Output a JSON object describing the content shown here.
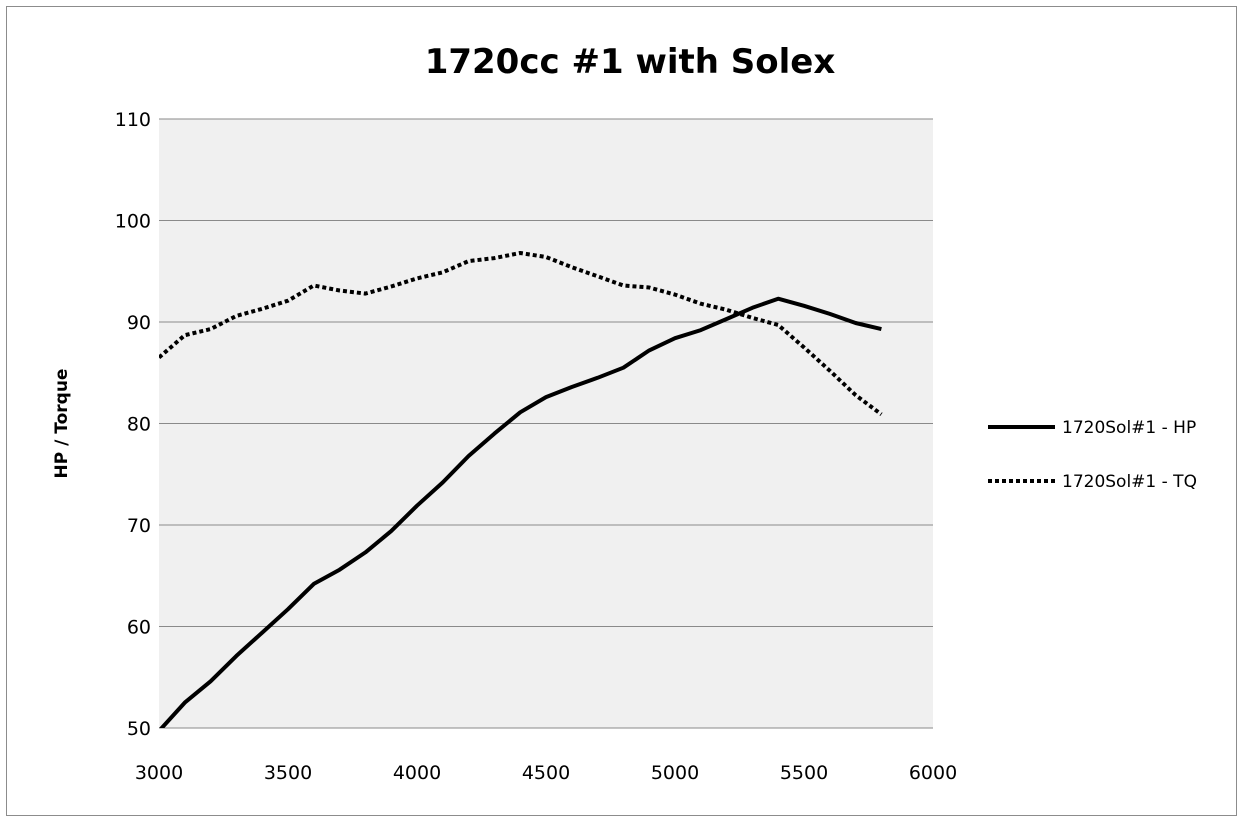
{
  "chart_data": {
    "type": "line",
    "title": "1720cc #1 with Solex",
    "xlabel": "",
    "ylabel": "HP / Torque",
    "xlim": [
      3000,
      6000
    ],
    "ylim": [
      50,
      110
    ],
    "xticks": [
      "3000",
      "3500",
      "4000",
      "4500",
      "5000",
      "5500",
      "6000"
    ],
    "yticks": [
      "50",
      "60",
      "70",
      "80",
      "90",
      "100",
      "110"
    ],
    "grid": "horizontal",
    "legend_position": "right",
    "x": [
      3000,
      3100,
      3200,
      3300,
      3400,
      3500,
      3600,
      3700,
      3800,
      3900,
      4000,
      4100,
      4200,
      4300,
      4400,
      4500,
      4600,
      4700,
      4800,
      4900,
      5000,
      5100,
      5200,
      5300,
      5400,
      5500,
      5600,
      5700,
      5800
    ],
    "series": [
      {
        "name": "1720Sol#1 - HP",
        "style": "solid",
        "color": "#000000",
        "values": [
          49.7,
          52.5,
          54.6,
          57.1,
          59.4,
          61.7,
          64.2,
          65.6,
          67.3,
          69.4,
          71.9,
          74.2,
          76.8,
          79.0,
          81.1,
          82.6,
          83.6,
          84.5,
          85.5,
          87.2,
          88.4,
          89.2,
          90.3,
          91.4,
          92.3,
          91.6,
          90.8,
          89.9,
          89.3
        ]
      },
      {
        "name": "1720Sol#1 - TQ",
        "style": "dotted",
        "color": "#000000",
        "values": [
          86.5,
          88.7,
          89.3,
          90.6,
          91.3,
          92.1,
          93.6,
          93.1,
          92.8,
          93.5,
          94.3,
          94.9,
          96.0,
          96.3,
          96.8,
          96.4,
          95.4,
          94.5,
          93.6,
          93.4,
          92.7,
          91.8,
          91.2,
          90.4,
          89.7,
          87.5,
          85.2,
          82.8,
          80.9
        ]
      }
    ]
  }
}
